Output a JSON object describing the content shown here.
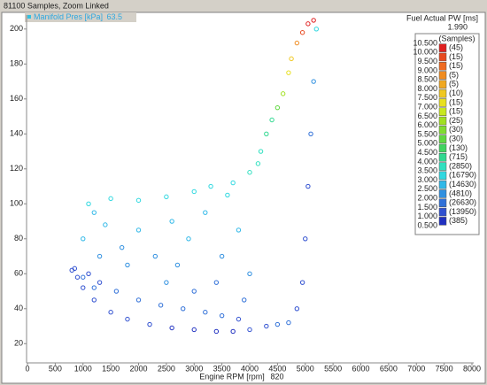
{
  "chart_data": {
    "type": "scatter",
    "title": "81100 Samples, Zoom Linked",
    "y_label": "Manifold Pres [kPa]",
    "y_cursor": "63.5",
    "x_label": "Engine RPM [rpm]",
    "x_cursor": "820",
    "z_label": "Fuel Actual PW [ms]",
    "z_cursor": "1.990",
    "xlim": [
      0,
      8000
    ],
    "ylim": [
      9,
      208
    ],
    "xticks": [
      0,
      500,
      1000,
      1500,
      2000,
      2500,
      3000,
      3500,
      4000,
      4500,
      5000,
      5500,
      6000,
      6500,
      7000,
      7500,
      8000
    ],
    "yticks": [
      20,
      40,
      60,
      80,
      100,
      120,
      140,
      160,
      180,
      200
    ],
    "x": [
      850,
      900,
      1000,
      1200,
      1500,
      1800,
      2200,
      2600,
      3000,
      3400,
      3700,
      4000,
      4300,
      4500,
      1100,
      1300,
      1600,
      2000,
      2400,
      2800,
      3200,
      3500,
      3800,
      3000,
      2500,
      3400,
      3900,
      1000,
      1200,
      1400,
      1700,
      2000,
      2300,
      2600,
      2900,
      3200,
      3500,
      3800,
      4000,
      1100,
      1500,
      2000,
      2500,
      3000,
      3300,
      3700,
      4000,
      4150,
      3600,
      1800,
      2700,
      1300,
      4200,
      4300,
      4400,
      4500,
      4600,
      4700,
      4750,
      4850,
      4950,
      5050,
      5150,
      5200,
      5150,
      5100,
      5050,
      5000,
      4950,
      4850,
      4700,
      800,
      1000,
      1200
    ],
    "y": [
      63,
      58,
      52,
      45,
      38,
      34,
      31,
      29,
      28,
      27,
      27,
      28,
      30,
      31,
      60,
      55,
      50,
      45,
      42,
      40,
      38,
      36,
      34,
      50,
      55,
      55,
      45,
      80,
      95,
      88,
      75,
      85,
      70,
      90,
      80,
      95,
      70,
      85,
      60,
      100,
      103,
      102,
      104,
      107,
      110,
      112,
      118,
      123,
      105,
      65,
      65,
      70,
      130,
      140,
      148,
      155,
      163,
      175,
      183,
      192,
      198,
      203,
      205,
      200,
      170,
      140,
      110,
      80,
      55,
      40,
      32,
      62,
      58,
      52
    ],
    "z": [
      1.2,
      1.2,
      1.1,
      1.1,
      1.0,
      1.0,
      1.0,
      0.9,
      0.9,
      0.9,
      0.8,
      1.2,
      1.4,
      1.6,
      1.4,
      1.4,
      1.6,
      1.6,
      1.7,
      1.7,
      1.6,
      1.5,
      1.4,
      1.9,
      2.0,
      1.9,
      1.8,
      2.6,
      2.8,
      2.6,
      2.4,
      2.6,
      2.3,
      2.7,
      2.5,
      2.8,
      2.4,
      2.7,
      2.2,
      3.0,
      3.1,
      3.1,
      3.2,
      3.2,
      3.3,
      3.4,
      3.5,
      3.6,
      3.2,
      2.2,
      2.2,
      2.3,
      3.7,
      4.2,
      4.4,
      5.2,
      6.0,
      7.2,
      7.8,
      8.8,
      9.6,
      10.2,
      10.4,
      3.2,
      2.2,
      1.8,
      1.4,
      1.2,
      1.2,
      1.3,
      1.5,
      1.2,
      1.8,
      1.6
    ],
    "color_scale": {
      "title": "(Samples)",
      "bounds": [
        {
          "value": 10.5,
          "label": "10.500"
        },
        {
          "value": 10,
          "label": "10.000"
        },
        {
          "value": 9.5,
          "label": "9.500"
        },
        {
          "value": 9,
          "label": "9.000"
        },
        {
          "value": 8.5,
          "label": "8.500"
        },
        {
          "value": 8,
          "label": "8.000"
        },
        {
          "value": 7.5,
          "label": "7.500"
        },
        {
          "value": 7,
          "label": "7.000"
        },
        {
          "value": 6.5,
          "label": "6.500"
        },
        {
          "value": 6,
          "label": "6.000"
        },
        {
          "value": 5.5,
          "label": "5.500"
        },
        {
          "value": 5,
          "label": "5.000"
        },
        {
          "value": 4.5,
          "label": "4.500"
        },
        {
          "value": 4,
          "label": "4.000"
        },
        {
          "value": 3.5,
          "label": "3.500"
        },
        {
          "value": 3,
          "label": "3.000"
        },
        {
          "value": 2.5,
          "label": "2.500"
        },
        {
          "value": 2,
          "label": "2.000"
        },
        {
          "value": 1.5,
          "label": "1.500"
        },
        {
          "value": 1,
          "label": "1.000"
        },
        {
          "value": 0.5,
          "label": "0.500"
        }
      ],
      "counts": [
        45,
        15,
        15,
        5,
        5,
        10,
        15,
        15,
        25,
        30,
        30,
        130,
        715,
        2850,
        16790,
        14630,
        4810,
        26630,
        13950,
        385
      ],
      "count_labels": [
        "(45)",
        "(15)",
        "(15)",
        "(5)",
        "(5)",
        "(10)",
        "(15)",
        "(15)",
        "(25)",
        "(30)",
        "(30)",
        "(130)",
        "(715)",
        "(2850)",
        "(16790)",
        "(14630)",
        "(4810)",
        "(26630)",
        "(13950)",
        "(385)"
      ],
      "colors": [
        "#e02020",
        "#e84a20",
        "#ef6a20",
        "#f08c20",
        "#f0a820",
        "#f0c820",
        "#e8e020",
        "#c8e820",
        "#a0e020",
        "#80dc30",
        "#60d840",
        "#40d460",
        "#30d890",
        "#30e0c0",
        "#30d8e0",
        "#30b8e8",
        "#3090e0",
        "#3070d8",
        "#3050d0",
        "#2030c0"
      ]
    }
  }
}
